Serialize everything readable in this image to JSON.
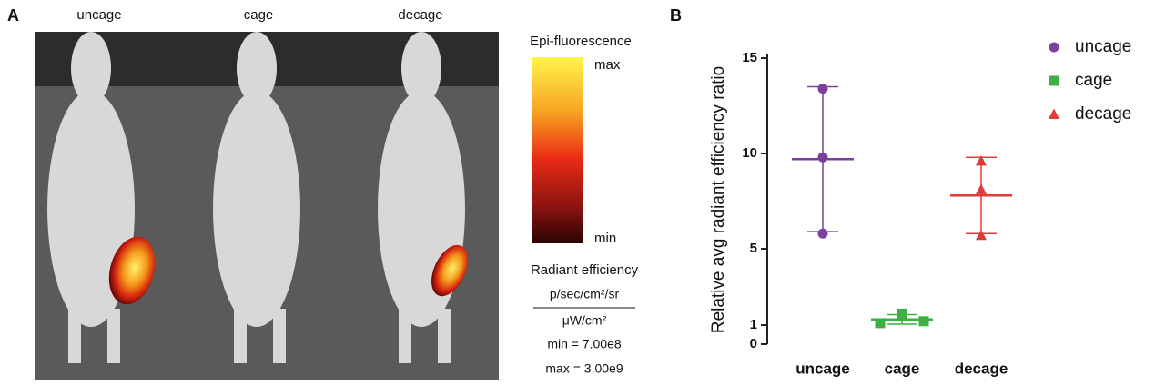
{
  "panel_a": {
    "label": "A",
    "columns": [
      "uncage",
      "cage",
      "decage"
    ],
    "colorbar": {
      "title": "Epi-fluorescence",
      "max": "max",
      "min": "min"
    },
    "units": {
      "title": "Radiant efficiency",
      "numerator": "p/sec/cm²/sr",
      "denominator": "μW/cm²",
      "min": "min = 7.00e8",
      "max": "max = 3.00e9"
    }
  },
  "chart_data": {
    "type": "dot_errorbar",
    "label": "B",
    "ylabel": "Relative avg radiant efficiency ratio",
    "categories": [
      "uncage",
      "cage",
      "decage"
    ],
    "ylim": [
      0,
      15
    ],
    "yticks": [
      0,
      1,
      5,
      10,
      15
    ],
    "series": [
      {
        "name": "uncage",
        "color": "#7b3f9e",
        "marker": "circle",
        "values": [
          13.4,
          9.8,
          5.8
        ],
        "mean": 9.7,
        "sd": 3.8
      },
      {
        "name": "cage",
        "color": "#3cb043",
        "marker": "square",
        "values": [
          1.1,
          1.6,
          1.2
        ],
        "mean": 1.3,
        "sd": 0.25
      },
      {
        "name": "decage",
        "color": "#e03a3a",
        "marker": "triangle",
        "values": [
          9.6,
          8.1,
          5.7
        ],
        "mean": 7.8,
        "sd": 2.0
      }
    ]
  }
}
